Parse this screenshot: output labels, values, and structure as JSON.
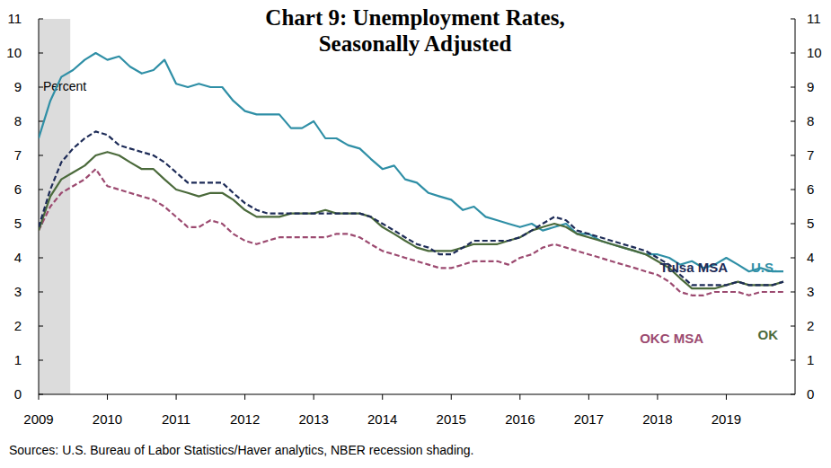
{
  "chart_data": {
    "type": "line",
    "title": [
      "Chart 9: Unemployment Rates,",
      "Seasonally Adjusted"
    ],
    "y_label": "Percent",
    "source": "Sources: U.S. Bureau of Labor Statistics/Haver analytics, NBER recession shading.",
    "recession_shading": [
      2009,
      2009.46
    ],
    "x": [
      2009.0,
      2009.17,
      2009.33,
      2009.5,
      2009.67,
      2009.83,
      2010.0,
      2010.17,
      2010.33,
      2010.5,
      2010.67,
      2010.83,
      2011.0,
      2011.17,
      2011.33,
      2011.5,
      2011.67,
      2011.83,
      2012.0,
      2012.17,
      2012.33,
      2012.5,
      2012.67,
      2012.83,
      2013.0,
      2013.17,
      2013.33,
      2013.5,
      2013.67,
      2013.83,
      2014.0,
      2014.17,
      2014.33,
      2014.5,
      2014.67,
      2014.83,
      2015.0,
      2015.17,
      2015.33,
      2015.5,
      2015.67,
      2015.83,
      2016.0,
      2016.17,
      2016.33,
      2016.5,
      2016.67,
      2016.83,
      2017.0,
      2017.17,
      2017.33,
      2017.5,
      2017.67,
      2017.83,
      2018.0,
      2018.17,
      2018.33,
      2018.5,
      2018.67,
      2018.83,
      2019.0,
      2019.17,
      2019.33,
      2019.5,
      2019.67,
      2019.83
    ],
    "series": [
      {
        "name": "U.S.",
        "color": "#2f8fa6",
        "line_style": "solid",
        "values": [
          7.5,
          8.6,
          9.3,
          9.5,
          9.8,
          10.0,
          9.8,
          9.9,
          9.6,
          9.4,
          9.5,
          9.8,
          9.1,
          9.0,
          9.1,
          9.0,
          9.0,
          8.6,
          8.3,
          8.2,
          8.2,
          8.2,
          7.8,
          7.8,
          8.0,
          7.5,
          7.5,
          7.3,
          7.2,
          6.9,
          6.6,
          6.7,
          6.3,
          6.2,
          5.9,
          5.8,
          5.7,
          5.4,
          5.5,
          5.2,
          5.1,
          5.0,
          4.9,
          5.0,
          4.8,
          4.9,
          5.0,
          4.7,
          4.7,
          4.5,
          4.4,
          4.3,
          4.2,
          4.1,
          4.1,
          4.0,
          3.8,
          3.9,
          3.7,
          3.8,
          4.0,
          3.8,
          3.6,
          3.7,
          3.6,
          3.6
        ]
      },
      {
        "name": "Tulsa MSA",
        "color": "#1d2b57",
        "line_style": "dashed",
        "values": [
          4.9,
          6.0,
          6.8,
          7.2,
          7.5,
          7.7,
          7.6,
          7.3,
          7.2,
          7.1,
          7.0,
          6.8,
          6.5,
          6.2,
          6.2,
          6.2,
          6.2,
          5.9,
          5.6,
          5.4,
          5.3,
          5.3,
          5.3,
          5.3,
          5.3,
          5.3,
          5.3,
          5.3,
          5.3,
          5.2,
          5.0,
          4.8,
          4.6,
          4.4,
          4.3,
          4.1,
          4.1,
          4.3,
          4.5,
          4.5,
          4.5,
          4.5,
          4.6,
          4.8,
          5.0,
          5.2,
          5.1,
          4.8,
          4.7,
          4.6,
          4.5,
          4.4,
          4.3,
          4.2,
          4.0,
          3.8,
          3.5,
          3.2,
          3.2,
          3.2,
          3.2,
          3.3,
          3.2,
          3.2,
          3.2,
          3.3
        ]
      },
      {
        "name": "OK",
        "color": "#4b6a3b",
        "line_style": "solid",
        "values": [
          4.8,
          5.8,
          6.3,
          6.5,
          6.7,
          7.0,
          7.1,
          7.0,
          6.8,
          6.6,
          6.6,
          6.3,
          6.0,
          5.9,
          5.8,
          5.9,
          5.9,
          5.7,
          5.4,
          5.2,
          5.2,
          5.2,
          5.3,
          5.3,
          5.3,
          5.4,
          5.3,
          5.3,
          5.3,
          5.2,
          4.9,
          4.7,
          4.5,
          4.3,
          4.2,
          4.2,
          4.2,
          4.3,
          4.4,
          4.4,
          4.4,
          4.5,
          4.6,
          4.8,
          4.9,
          5.0,
          4.9,
          4.7,
          4.6,
          4.5,
          4.4,
          4.3,
          4.2,
          4.1,
          3.9,
          3.7,
          3.4,
          3.1,
          3.1,
          3.1,
          3.2,
          3.3,
          3.2,
          3.2,
          3.2,
          3.3
        ]
      },
      {
        "name": "OKC MSA",
        "color": "#9c4a70",
        "line_style": "dashed",
        "values": [
          4.8,
          5.5,
          5.9,
          6.1,
          6.3,
          6.6,
          6.1,
          6.0,
          5.9,
          5.8,
          5.7,
          5.5,
          5.2,
          4.9,
          4.9,
          5.1,
          5.0,
          4.7,
          4.5,
          4.4,
          4.5,
          4.6,
          4.6,
          4.6,
          4.6,
          4.6,
          4.7,
          4.7,
          4.6,
          4.4,
          4.2,
          4.1,
          4.0,
          3.9,
          3.8,
          3.7,
          3.7,
          3.8,
          3.9,
          3.9,
          3.9,
          3.8,
          4.0,
          4.1,
          4.3,
          4.4,
          4.3,
          4.2,
          4.1,
          4.0,
          3.9,
          3.8,
          3.7,
          3.6,
          3.5,
          3.3,
          3.0,
          2.9,
          2.9,
          3.0,
          3.0,
          3.0,
          2.9,
          3.0,
          3.0,
          3.0
        ]
      }
    ],
    "xlim": [
      2009,
      2020
    ],
    "xticks": [
      2009,
      2010,
      2011,
      2012,
      2013,
      2014,
      2015,
      2016,
      2017,
      2018,
      2019
    ],
    "ylim": [
      0,
      11
    ],
    "yticks": [
      0,
      1,
      2,
      3,
      4,
      5,
      6,
      7,
      8,
      9,
      10,
      11
    ],
    "y2lim": [
      0,
      11
    ],
    "y2ticks": [
      0,
      1,
      2,
      3,
      4,
      5,
      6,
      7,
      8,
      9,
      10,
      11
    ],
    "grid": false
  }
}
